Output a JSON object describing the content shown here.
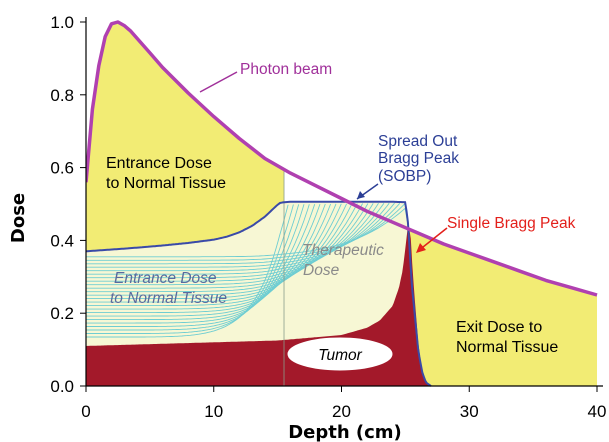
{
  "chart_data": {
    "type": "area",
    "xlabel": "Depth (cm)",
    "ylabel": "Dose",
    "xlim": [
      0,
      40
    ],
    "ylim": [
      0,
      1.0
    ],
    "x_ticks": [
      "0",
      "10",
      "20",
      "30",
      "40"
    ],
    "y_ticks": [
      "0.0",
      "0.2",
      "0.4",
      "0.6",
      "0.8",
      "1.0"
    ],
    "grid": false,
    "colors": {
      "photon": "#b040b0",
      "sobp": "#3a4aa8",
      "single_peak": "#e8241c",
      "tumor_fill": "#a3192a",
      "excess_fill": "#f2ec74",
      "therapeutic_fill": "#f7f7d4",
      "bragg_curves": "#6ecdd2",
      "callout_photon": "#a0309a",
      "callout_sobp": "#2c3f96",
      "callout_peak": "#e3201b",
      "text_entrance": "#5a6a9e",
      "text_therapeutic": "#8a8a8a"
    },
    "series": [
      {
        "name": "Photon beam",
        "x": [
          0,
          0.5,
          1,
          1.5,
          2,
          2.5,
          3,
          3.5,
          4,
          5,
          6,
          7,
          8,
          10,
          12,
          14,
          16,
          18,
          20,
          22,
          24,
          26,
          28,
          30,
          32,
          34,
          36,
          38,
          40
        ],
        "y": [
          0.56,
          0.76,
          0.88,
          0.96,
          0.995,
          1.0,
          0.99,
          0.975,
          0.955,
          0.915,
          0.875,
          0.84,
          0.805,
          0.74,
          0.68,
          0.625,
          0.585,
          0.55,
          0.515,
          0.48,
          0.45,
          0.42,
          0.39,
          0.365,
          0.34,
          0.315,
          0.29,
          0.27,
          0.25
        ]
      },
      {
        "name": "Spread Out Bragg Peak (SOBP)",
        "x": [
          0,
          2,
          4,
          6,
          8,
          10,
          11,
          12,
          13,
          14,
          14.6,
          15,
          15.2,
          15.5,
          16,
          18,
          20,
          22,
          24,
          25,
          25.2,
          25.5,
          26,
          26.3,
          26.6,
          27,
          40
        ],
        "y": [
          0.37,
          0.375,
          0.38,
          0.386,
          0.393,
          0.402,
          0.41,
          0.422,
          0.44,
          0.465,
          0.485,
          0.498,
          0.503,
          0.505,
          0.506,
          0.506,
          0.506,
          0.506,
          0.506,
          0.505,
          0.45,
          0.28,
          0.1,
          0.04,
          0.01,
          0,
          0
        ]
      },
      {
        "name": "Single Bragg Peak",
        "x": [
          0,
          5,
          10,
          15,
          20,
          22,
          23,
          24,
          24.5,
          24.8,
          25,
          25.2,
          25.4,
          25.6,
          26,
          26.3,
          26.6,
          27,
          40
        ],
        "y": [
          0.11,
          0.115,
          0.12,
          0.125,
          0.14,
          0.16,
          0.18,
          0.22,
          0.27,
          0.32,
          0.38,
          0.44,
          0.42,
          0.3,
          0.12,
          0.04,
          0.01,
          0,
          0
        ]
      }
    ],
    "annotations": {
      "photon_beam": "Photon beam",
      "sobp_line1": "Spread Out",
      "sobp_line2": "Bragg Peak",
      "sobp_line3": "(SOBP)",
      "single_peak": "Single Bragg Peak",
      "entrance_photon_line1": "Entrance Dose",
      "entrance_photon_line2": "to Normal Tissue",
      "entrance_proton_line1": "Entrance Dose",
      "entrance_proton_line2": "to Normal Tissue",
      "therapeutic_line1": "Therapeutic",
      "therapeutic_line2": "Dose",
      "exit_line1": "Exit Dose to",
      "exit_line2": "Normal Tissue",
      "tumor": "Tumor"
    }
  }
}
